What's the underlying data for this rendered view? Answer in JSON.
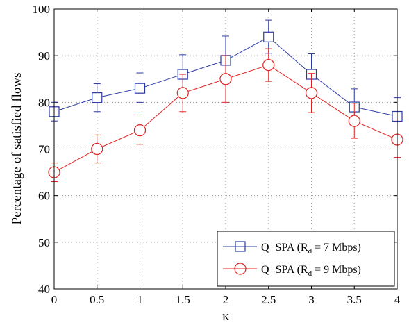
{
  "chart_data": {
    "type": "line",
    "title": "",
    "xlabel": "κ",
    "ylabel": "Percentage of satisfied flows",
    "x": [
      0,
      0.5,
      1,
      1.5,
      2,
      2.5,
      3,
      3.5,
      4
    ],
    "x_tick_labels": [
      "0",
      "0.5",
      "1",
      "1.5",
      "2",
      "2.5",
      "3",
      "3.5",
      "4"
    ],
    "xlim": [
      0,
      4
    ],
    "y_ticks": [
      40,
      50,
      60,
      70,
      80,
      90,
      100
    ],
    "y_tick_labels": [
      "40",
      "50",
      "60",
      "70",
      "80",
      "90",
      "100"
    ],
    "ylim": [
      40,
      100
    ],
    "grid": true,
    "legend_position": "bottom-right",
    "series": [
      {
        "name": "Q−SPA (R_d = 7 Mbps)",
        "legend_main": "Q−SPA (R",
        "legend_sub": "d",
        "legend_rest": " = 7 Mbps)",
        "color": "#2b3aa3",
        "marker": "square",
        "values": [
          78,
          81,
          83,
          86,
          89,
          94,
          86,
          79,
          77
        ],
        "error_low": [
          76,
          78,
          80,
          82.5,
          84,
          90.5,
          81.5,
          75,
          73
        ],
        "error_high": [
          80,
          84,
          86.3,
          90.2,
          94.2,
          97.6,
          90.4,
          82.9,
          81
        ]
      },
      {
        "name": "Q−SPA (R_d = 9 Mbps)",
        "legend_main": "Q−SPA (R",
        "legend_sub": "d",
        "legend_rest": " = 9 Mbps)",
        "color": "#e02020",
        "marker": "circle",
        "values": [
          65,
          70,
          74,
          82,
          85,
          88,
          82,
          76,
          72
        ],
        "error_low": [
          63,
          67,
          71,
          78,
          80,
          84.5,
          77.8,
          72.3,
          68.2
        ],
        "error_high": [
          67,
          73,
          77.3,
          86,
          90,
          91.5,
          86.2,
          79.8,
          75.8
        ]
      }
    ]
  }
}
